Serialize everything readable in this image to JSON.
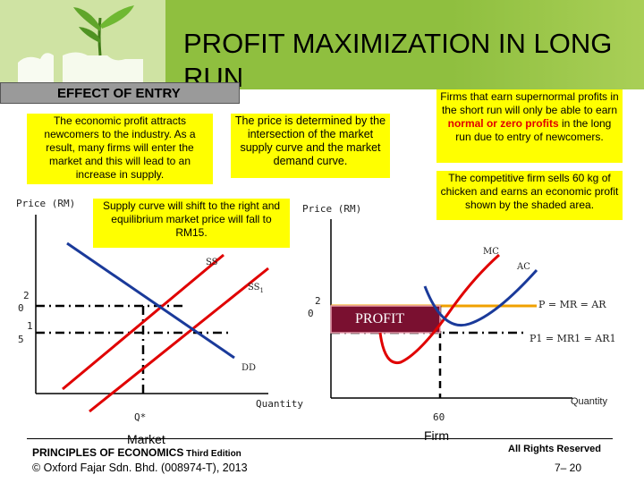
{
  "header": {
    "title": "PROFIT MAXIMIZATION IN LONG RUN",
    "section_label": "EFFECT OF ENTRY"
  },
  "boxes": {
    "attract": "The economic profit attracts newcomers to the industry. As a result, many firms will enter the market and this will lead to an increase in supply.",
    "price_determined": "The price is determined by the intersection of the market supply curve and the market demand curve.",
    "supernormal_pre": "Firms that earn supernormal profits in the short run will only be able to earn ",
    "supernormal_hl1": "normal or zero profits",
    "supernormal_post": " in the long run due to entry of newcomers.",
    "competitive_firm": "The competitive firm sells 60 kg of chicken and earns an economic profit shown by the shaded area.",
    "supply_shift": "Supply curve will shift to the right and equilibrium market price will fall to RM15."
  },
  "market_graph": {
    "y_label": "Price (RM)",
    "tick_20_a": "2",
    "tick_20_b": "0",
    "tick_15_a": "1",
    "tick_15_b": "5",
    "ss_label": "SS",
    "ss1_label": "SS",
    "ss1_sub": "1",
    "dd_label": "DD",
    "x_label": "Quantity",
    "q_label": "Q*",
    "caption": "Market"
  },
  "firm_graph": {
    "y_label": "Price (RM)",
    "tick_20_a": "2",
    "tick_20_b": "0",
    "mc_label": "MC",
    "ac_label": "AC",
    "profit_label": "PROFIT",
    "p_label": "P = MR = AR",
    "p1_label": "P1 = MR1 = AR1",
    "x_label": "Quantity",
    "q_label": "60",
    "caption": "Firm"
  },
  "footer": {
    "book": "PRINCIPLES OF ECONOMICS",
    "edition": " Third Edition",
    "copyright": "© Oxford Fajar Sdn. Bhd. (008974-T), 2013",
    "rights": "All Rights Reserved",
    "page": "7– 20"
  },
  "colors": {
    "band": "#8fbf3f",
    "highlight": "#ffff00",
    "supply": "#e00000",
    "demand": "#1a3a9a",
    "profit_box": "#7a1030",
    "price_line": "#f0a000"
  }
}
